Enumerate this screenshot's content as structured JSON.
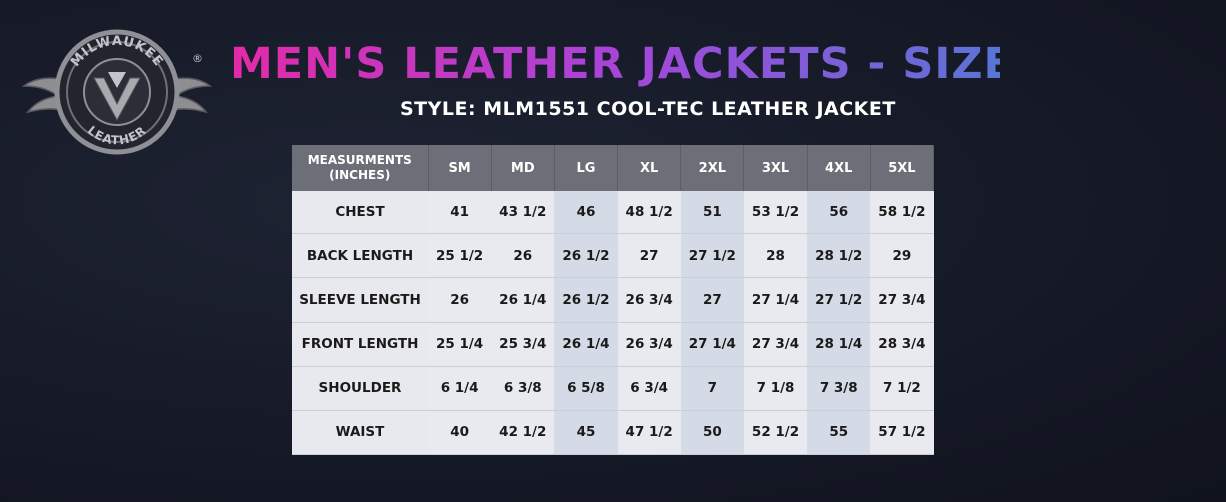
{
  "brand": {
    "logo_top_text": "MILWAUKEE",
    "logo_bottom_text": "LEATHER",
    "logo_registered": "®"
  },
  "title": "MEN'S LEATHER JACKETS - SIZE CHART",
  "subtitle": "STYLE: MLM1551 COOL-TEC LEATHER JACKET",
  "table": {
    "header_line1": "MEASURMENTS",
    "header_line2": "(INCHES)",
    "sizes": [
      "SM",
      "MD",
      "LG",
      "XL",
      "2XL",
      "3XL",
      "4XL",
      "5XL"
    ],
    "rows": [
      {
        "label": "CHEST",
        "values": [
          "41",
          "43 1/2",
          "46",
          "48 1/2",
          "51",
          "53 1/2",
          "56",
          "58 1/2"
        ]
      },
      {
        "label": "BACK LENGTH",
        "values": [
          "25 1/2",
          "26",
          "26 1/2",
          "27",
          "27 1/2",
          "28",
          "28 1/2",
          "29"
        ]
      },
      {
        "label": "SLEEVE LENGTH",
        "values": [
          "26",
          "26 1/4",
          "26 1/2",
          "26 3/4",
          "27",
          "27 1/4",
          "27 1/2",
          "27 3/4"
        ]
      },
      {
        "label": "FRONT LENGTH",
        "values": [
          "25 1/4",
          "25 3/4",
          "26 1/4",
          "26 3/4",
          "27 1/4",
          "27 3/4",
          "28 1/4",
          "28 3/4"
        ]
      },
      {
        "label": "SHOULDER",
        "values": [
          "6 1/4",
          "6 3/8",
          "6 5/8",
          "6 3/4",
          "7",
          "7 1/8",
          "7 3/8",
          "7 1/2"
        ]
      },
      {
        "label": "WAIST",
        "values": [
          "40",
          "42 1/2",
          "45",
          "47 1/2",
          "50",
          "52 1/2",
          "55",
          "57 1/2"
        ]
      }
    ]
  }
}
